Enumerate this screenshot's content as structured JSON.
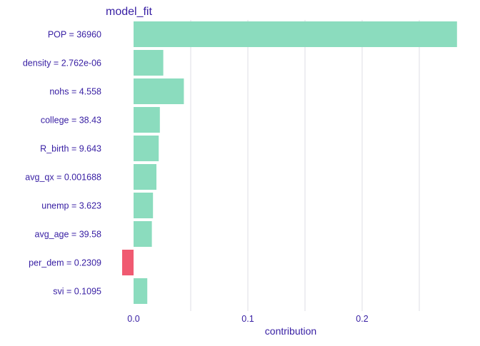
{
  "chart_data": {
    "type": "bar",
    "orientation": "horizontal",
    "title": "model_fit",
    "xlabel": "contribution",
    "ylabel": "",
    "grid": "vertical",
    "xlim": [
      -0.1,
      0.284
    ],
    "x_ticks": [
      0.0,
      0.1,
      0.2
    ],
    "x_tick_labels": [
      "0.0",
      "0.1",
      "0.2"
    ],
    "categories": [
      "POP = 36960",
      "density = 2.762e-06",
      "nohs = 4.558",
      "college = 38.43",
      "R_birth = 9.643",
      "avg_qx = 0.001688",
      "unemp = 3.623",
      "avg_age = 39.58",
      "per_dem = 0.2309",
      "svi = 0.1095"
    ],
    "values": [
      0.283,
      0.026,
      0.044,
      0.023,
      0.022,
      0.02,
      0.017,
      0.016,
      -0.01,
      0.012
    ],
    "colors": {
      "positive": "#8bdcbe",
      "negative": "#f05a71",
      "text": "#371ea3",
      "grid": "#e2e2e8"
    }
  }
}
